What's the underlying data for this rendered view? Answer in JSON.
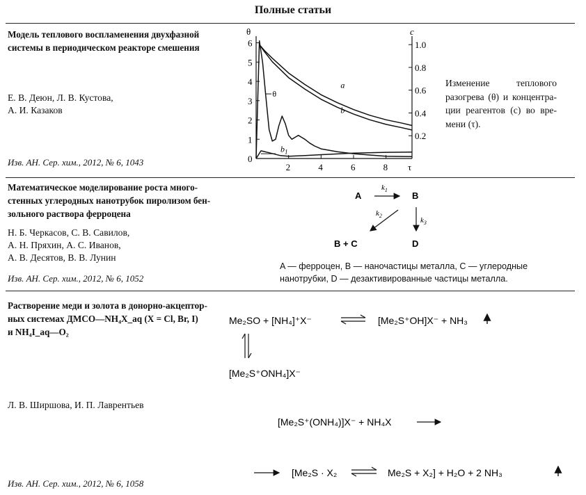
{
  "header": "Полные статьи",
  "articles": [
    {
      "title_lines": [
        "Модель теплового воспламенения двухфазной",
        "системы в периодическом реакторе смешения"
      ],
      "authors": [
        "Е. В. Деюн, Л. В. Кустова,",
        "А. И. Казаков"
      ],
      "citation": "Изв. АН. Сер. хим., 2012, № 6, 1043",
      "caption_lines": [
        "Изменение теплового",
        "разогрева (θ) и концентра-",
        "ции реагентов (c) во вре-",
        "мени (τ)."
      ]
    },
    {
      "title_lines": [
        "Математическое моделирование роста много-",
        "стенных углеродных нанотрубок пиролизом бен-",
        "зольного раствора ферроцена"
      ],
      "authors": [
        "Н. Б. Черкасов, С. В. Савилов,",
        "А. Н. Пряхин, А. С. Иванов,",
        "А. В. Десятов, В. В. Лунин"
      ],
      "citation": "Изв. АН. Сер. хим., 2012, № 6, 1052",
      "scheme": {
        "A": "A",
        "B": "B",
        "BC": "B + C",
        "D": "D",
        "k1": "k",
        "k2": "k",
        "k3": "k",
        "k1_sub": "1",
        "k2_sub": "2",
        "k3_sub": "3"
      },
      "legend_lines": [
        "A — ферроцен, B — наночастицы металла, C — углеродные",
        "нанотрубки, D — дезактивированные частицы металла."
      ]
    },
    {
      "title_lines": [
        "Растворение меди и золота в донорно-акцептор-",
        "ных системах ДМСО—NH₄X_aq (X = Cl, Br, I)",
        "и NH₄I_aq—O₂"
      ],
      "authors": [
        "Л. В. Ширшова, И. П. Лаврентьев"
      ],
      "citation": "Изв. АН. Сер. хим., 2012, № 6, 1058"
    }
  ],
  "chart_data": {
    "type": "line",
    "left_axis_label": "θ",
    "right_axis_label": "c",
    "xlabel": "τ",
    "x_ticks": [
      2,
      4,
      6,
      8
    ],
    "left_ticks": [
      0,
      1,
      2,
      3,
      4,
      5,
      6
    ],
    "right_ticks": [
      0.2,
      0.4,
      0.6,
      0.8,
      1.0
    ],
    "right_tick_labels": [
      "0.2",
      "0.4",
      "0.6",
      "0.8",
      "1.0"
    ],
    "xlim": [
      0,
      9.6
    ],
    "ylim_left": [
      0,
      6.2
    ],
    "ylim_right": [
      0,
      1.05
    ],
    "series": [
      {
        "name": "a",
        "axis": "right",
        "x": [
          0.2,
          0.5,
          1,
          2,
          3,
          4,
          5,
          6,
          7,
          8,
          9,
          9.6
        ],
        "y": [
          1.0,
          0.95,
          0.88,
          0.75,
          0.65,
          0.56,
          0.49,
          0.43,
          0.38,
          0.34,
          0.31,
          0.29
        ]
      },
      {
        "name": "b",
        "axis": "right",
        "x": [
          0.2,
          0.5,
          1,
          2,
          3,
          4,
          5,
          6,
          7,
          8,
          9,
          9.6
        ],
        "y": [
          1.0,
          0.94,
          0.85,
          0.71,
          0.61,
          0.52,
          0.45,
          0.39,
          0.34,
          0.3,
          0.27,
          0.25
        ]
      },
      {
        "name": "θ",
        "axis": "left",
        "x": [
          0,
          0.2,
          0.4,
          0.6,
          0.8,
          1.0,
          1.2,
          1.4,
          1.6,
          1.8,
          2.0,
          2.2,
          2.4,
          2.6,
          2.8,
          3.0,
          3.3,
          3.6,
          4.0,
          5.0,
          6.0,
          7.0,
          8.0,
          9.6
        ],
        "y": [
          0,
          6.1,
          5.0,
          3.2,
          1.5,
          0.9,
          1.0,
          1.7,
          2.2,
          1.8,
          1.2,
          1.0,
          1.1,
          1.2,
          1.1,
          1.0,
          0.8,
          0.65,
          0.5,
          0.35,
          0.25,
          0.18,
          0.12,
          0.1
        ]
      },
      {
        "name": "b1",
        "axis": "left",
        "x": [
          0,
          0.3,
          0.8,
          1.5,
          2,
          3,
          4,
          6,
          8,
          9.6
        ],
        "y": [
          0,
          0.4,
          0.3,
          0.15,
          0.12,
          0.15,
          0.2,
          0.28,
          0.32,
          0.33
        ]
      }
    ],
    "curve_labels": {
      "a": "a",
      "b": "b",
      "theta": "θ",
      "b1": "b",
      "b1_sub": "1"
    }
  },
  "reactions": {
    "r1_left": "Me₂SO  +  [NH₄]⁺X⁻",
    "r1_right": "[Me₂S⁺OH]X⁻  +  NH₃",
    "r1_down": "[Me₂S⁺ONH₄]X⁻",
    "r2": "[Me₂S⁺(ONH₄)]X⁻  +  NH₄X",
    "r3_a": "[Me₂S · X₂",
    "r3_b": "Me₂S  +  X₂]  +  H₂O  +  2 NH₃"
  }
}
